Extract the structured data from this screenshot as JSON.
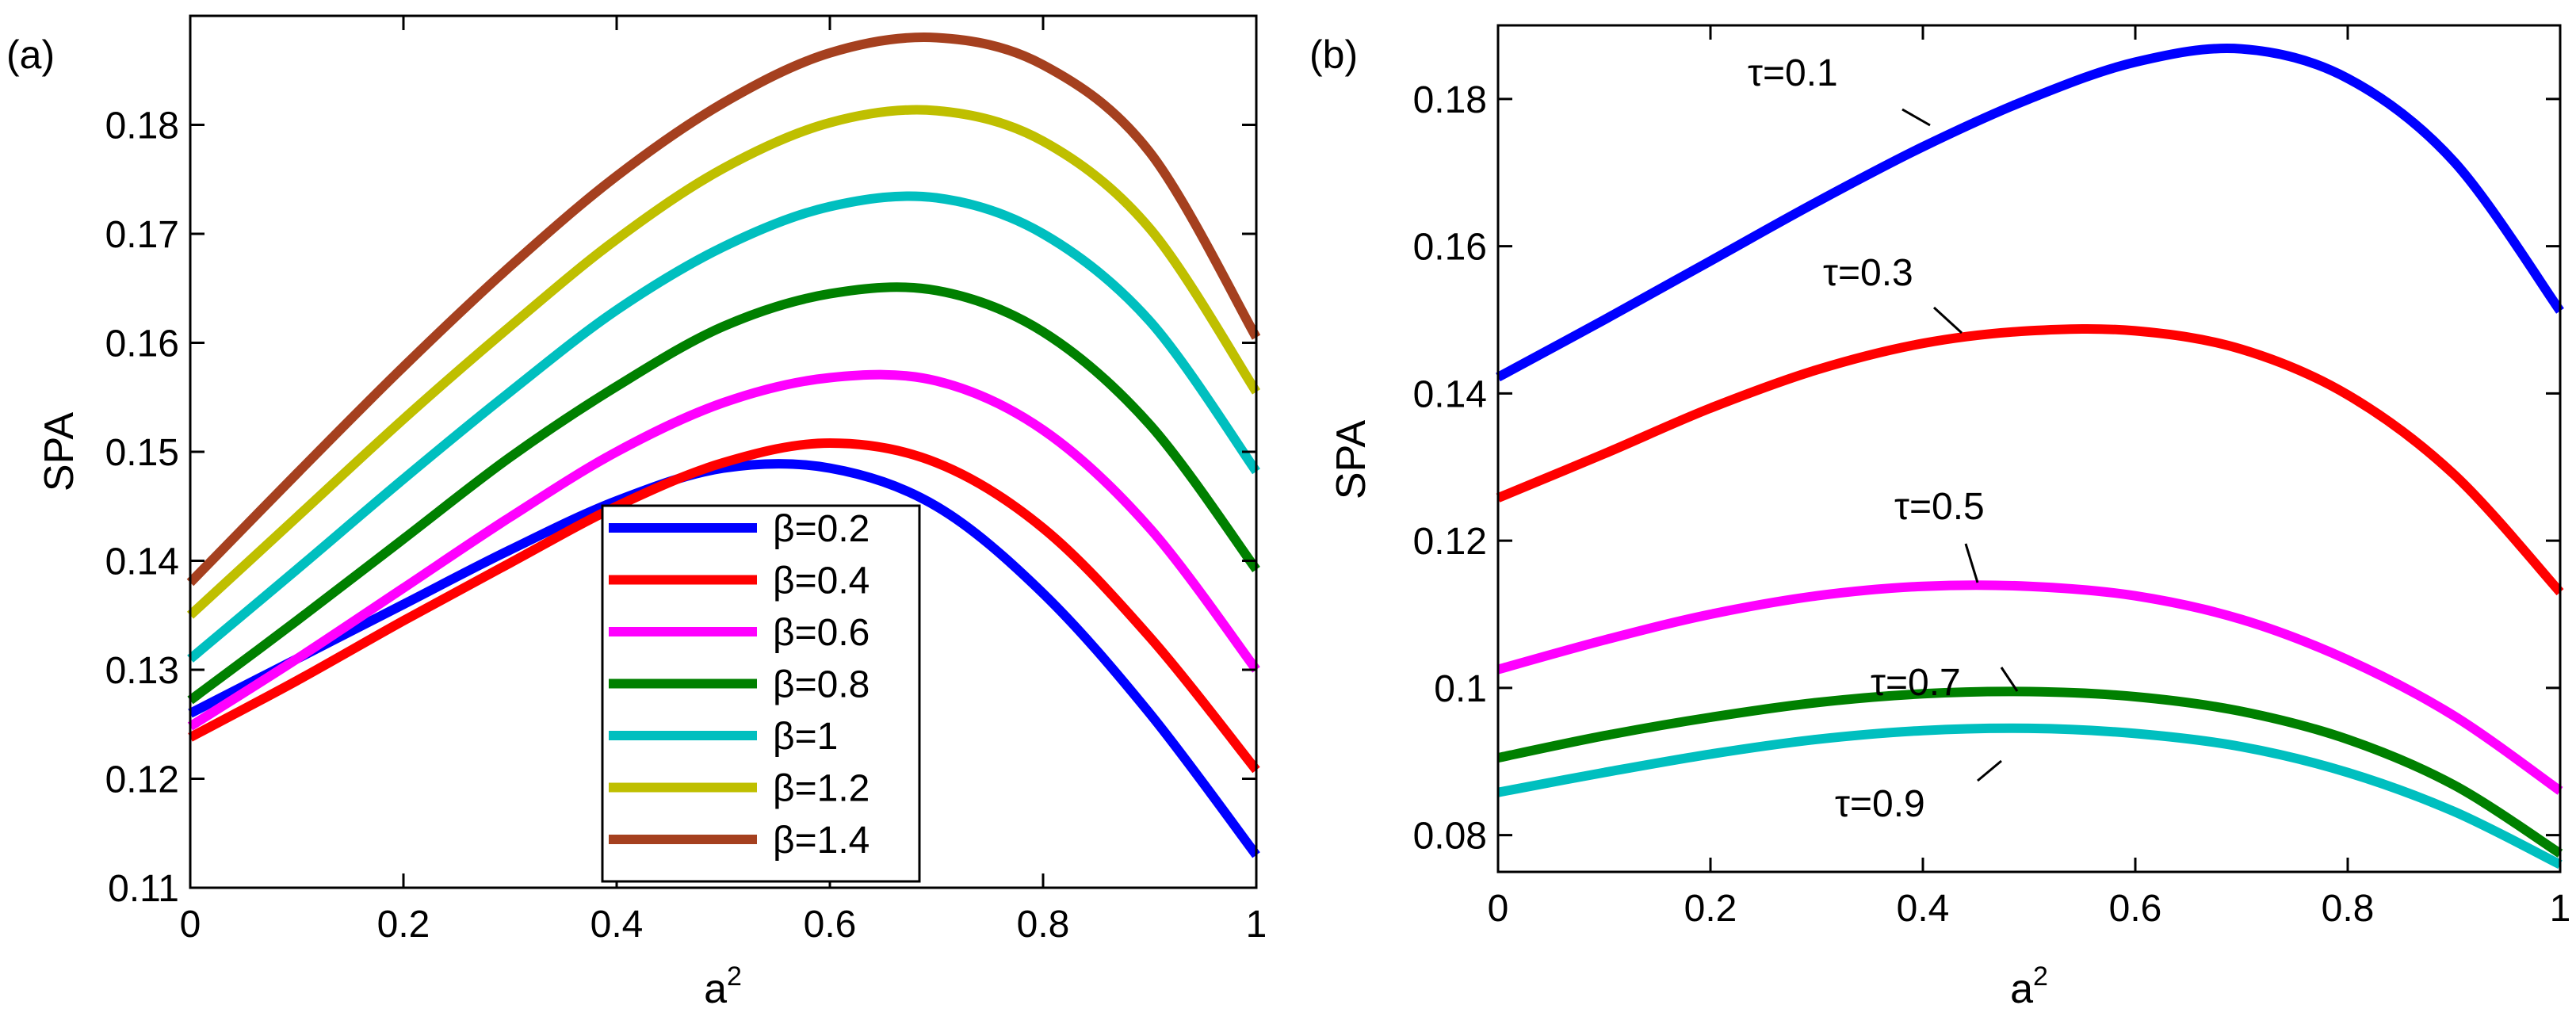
{
  "chart_data": [
    {
      "type": "line",
      "panel_label": "(a)",
      "xlabel": "a",
      "xlabel_sup": "2",
      "ylabel": "SPA",
      "xlim": [
        0,
        1
      ],
      "ylim": [
        0.11,
        0.19
      ],
      "xticks": [
        "0",
        "0.2",
        "0.4",
        "0.6",
        "0.8",
        "1"
      ],
      "yticks": [
        "0.11",
        "0.12",
        "0.13",
        "0.14",
        "0.15",
        "0.16",
        "0.17",
        "0.18"
      ],
      "grid": false,
      "legend_position": "bottom-center",
      "x": [
        0,
        0.1,
        0.2,
        0.3,
        0.4,
        0.5,
        0.6,
        0.7,
        0.8,
        0.9,
        1.0
      ],
      "series": [
        {
          "name": "β=0.2",
          "color": "#0000ff",
          "values": [
            0.126,
            0.131,
            0.136,
            0.141,
            0.1455,
            0.1485,
            0.1485,
            0.145,
            0.137,
            0.126,
            0.113
          ]
        },
        {
          "name": "β=0.4",
          "color": "#ff0000",
          "values": [
            0.1238,
            0.129,
            0.1345,
            0.1398,
            0.145,
            0.149,
            0.1508,
            0.149,
            0.143,
            0.133,
            0.1208
          ]
        },
        {
          "name": "β=0.6",
          "color": "#ff00ff",
          "values": [
            0.1248,
            0.131,
            0.1375,
            0.144,
            0.15,
            0.1545,
            0.1568,
            0.1565,
            0.152,
            0.143,
            0.13
          ]
        },
        {
          "name": "β=0.8",
          "color": "#008000",
          "values": [
            0.1272,
            0.1345,
            0.142,
            0.1495,
            0.156,
            0.1615,
            0.1645,
            0.1648,
            0.161,
            0.1525,
            0.1392
          ]
        },
        {
          "name": "β=1",
          "color": "#00bfbf",
          "values": [
            0.131,
            0.1392,
            0.1475,
            0.1555,
            0.163,
            0.1688,
            0.1725,
            0.1733,
            0.17,
            0.162,
            0.1482
          ]
        },
        {
          "name": "β=1.2",
          "color": "#bfbf00",
          "values": [
            0.135,
            0.144,
            0.153,
            0.1615,
            0.1695,
            0.176,
            0.1802,
            0.1813,
            0.1785,
            0.1705,
            0.1555
          ]
        },
        {
          "name": "β=1.4",
          "color": "#a5401f",
          "values": [
            0.138,
            0.148,
            0.1578,
            0.167,
            0.1753,
            0.182,
            0.1866,
            0.188,
            0.1855,
            0.1775,
            0.1605
          ]
        }
      ]
    },
    {
      "type": "line",
      "panel_label": "(b)",
      "xlabel": "a",
      "xlabel_sup": "2",
      "ylabel": "SPA",
      "xlim": [
        0,
        1
      ],
      "ylim": [
        0.075,
        0.19
      ],
      "xticks": [
        "0",
        "0.2",
        "0.4",
        "0.6",
        "0.8",
        "1"
      ],
      "yticks": [
        "0.08",
        "0.1",
        "0.12",
        "0.14",
        "0.16",
        "0.18"
      ],
      "grid": false,
      "x": [
        0,
        0.1,
        0.2,
        0.3,
        0.4,
        0.5,
        0.6,
        0.7,
        0.8,
        0.9,
        1.0
      ],
      "series": [
        {
          "name": "τ=0.1",
          "color": "#0000ff",
          "values": [
            0.1422,
            0.15,
            0.158,
            0.166,
            0.1735,
            0.18,
            0.185,
            0.1868,
            0.1828,
            0.1715,
            0.1512
          ]
        },
        {
          "name": "τ=0.3",
          "color": "#ff0000",
          "values": [
            0.1258,
            0.1318,
            0.138,
            0.1432,
            0.1468,
            0.1485,
            0.1485,
            0.146,
            0.1398,
            0.129,
            0.113
          ]
        },
        {
          "name": "τ=0.5",
          "color": "#ff00ff",
          "values": [
            0.1025,
            0.1065,
            0.11,
            0.1125,
            0.1138,
            0.1138,
            0.1125,
            0.1093,
            0.1038,
            0.0962,
            0.086
          ]
        },
        {
          "name": "τ=0.7",
          "color": "#008000",
          "values": [
            0.0905,
            0.0935,
            0.096,
            0.098,
            0.0992,
            0.0995,
            0.0988,
            0.0968,
            0.093,
            0.0868,
            0.0775
          ]
        },
        {
          "name": "τ=0.9",
          "color": "#00bfbf",
          "values": [
            0.0858,
            0.0885,
            0.091,
            0.093,
            0.0942,
            0.0945,
            0.0938,
            0.092,
            0.0885,
            0.0832,
            0.076
          ]
        }
      ],
      "annotations": [
        {
          "text": "τ=0.1",
          "series": "τ=0.1"
        },
        {
          "text": "τ=0.3",
          "series": "τ=0.3"
        },
        {
          "text": "τ=0.5",
          "series": "τ=0.5"
        },
        {
          "text": "τ=0.7",
          "series": "τ=0.7"
        },
        {
          "text": "τ=0.9",
          "series": "τ=0.9"
        }
      ]
    }
  ]
}
